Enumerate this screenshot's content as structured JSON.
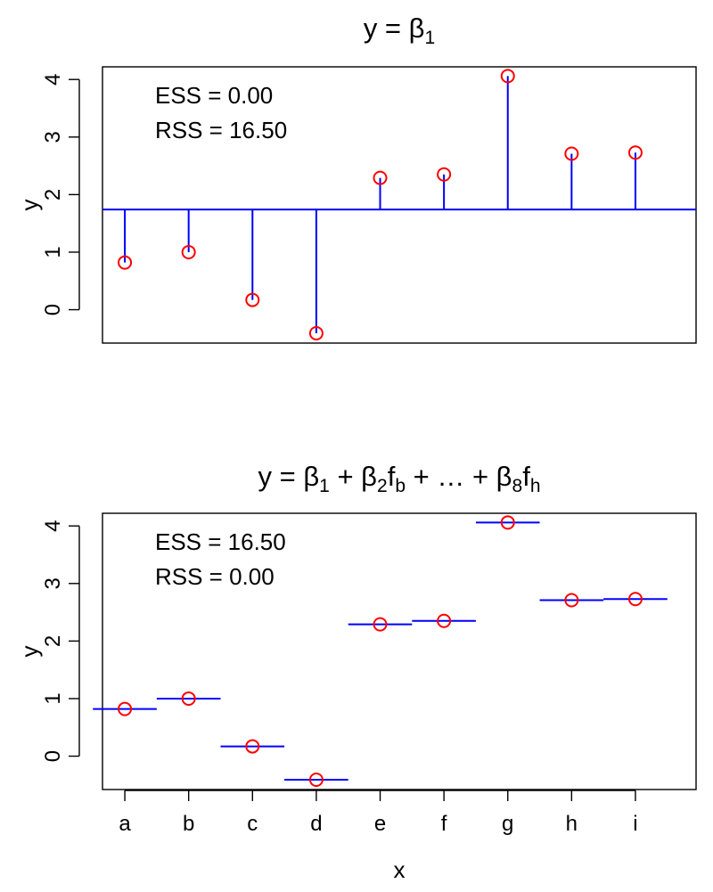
{
  "chart_data": [
    {
      "type": "scatter",
      "title": {
        "base": "y = β",
        "sub": "1"
      },
      "xlabel": "",
      "ylabel": "y",
      "ylim": [
        -0.58,
        4.22
      ],
      "yticks": [
        0,
        1,
        2,
        3,
        4
      ],
      "categories": [
        "a",
        "b",
        "c",
        "d",
        "e",
        "f",
        "g",
        "h",
        "i"
      ],
      "show_xticks": false,
      "points": [
        0.82,
        1.0,
        0.17,
        -0.41,
        2.29,
        2.35,
        4.06,
        2.71,
        2.73
      ],
      "fit": {
        "kind": "constant",
        "value": 1.74
      },
      "annotations": [
        "ESS = 0.00",
        "RSS = 16.50"
      ],
      "colors": {
        "points": "#ff0000",
        "fit": "#0000ff"
      }
    },
    {
      "type": "scatter",
      "title": {
        "parts": [
          {
            "t": "y = β"
          },
          {
            "t": "1",
            "sub": true
          },
          {
            "t": " + β"
          },
          {
            "t": "2",
            "sub": true
          },
          {
            "t": "f"
          },
          {
            "t": "b",
            "sub": true
          },
          {
            "t": " + … + β"
          },
          {
            "t": "8",
            "sub": true
          },
          {
            "t": "f"
          },
          {
            "t": "h",
            "sub": true
          }
        ]
      },
      "xlabel": "x",
      "ylabel": "y",
      "ylim": [
        -0.58,
        4.22
      ],
      "yticks": [
        0,
        1,
        2,
        3,
        4
      ],
      "categories": [
        "a",
        "b",
        "c",
        "d",
        "e",
        "f",
        "g",
        "h",
        "i"
      ],
      "show_xticks": true,
      "points": [
        0.82,
        1.0,
        0.17,
        -0.41,
        2.29,
        2.35,
        4.06,
        2.71,
        2.73
      ],
      "fit": {
        "kind": "group-means"
      },
      "annotations": [
        "ESS = 16.50",
        "RSS = 0.00"
      ],
      "colors": {
        "points": "#ff0000",
        "fit": "#0000ff"
      }
    }
  ]
}
